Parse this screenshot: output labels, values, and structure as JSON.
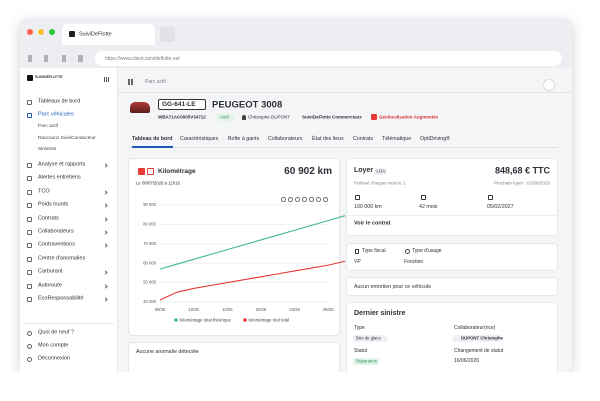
{
  "browser": {
    "tab_title": "SuiviDeFlotte",
    "url": "https://www.client.suivideflotte.net"
  },
  "sidebar": {
    "brand": "SUIVIDEFLOTTE",
    "menu": [
      "Tableaux de bord",
      "Parc véhicules",
      "Analyse et rapports",
      "Alertes entretiens",
      "TCO",
      "Poids lourds",
      "Contrats",
      "Collaborateurs",
      "Contraventions",
      "Centre d'anomalies",
      "Carburant",
      "Autoroute",
      "EcoResponsabilité"
    ],
    "submenu": [
      "Parc actif",
      "Raccourci SuiviConducteur",
      "Sinistres"
    ],
    "footer": [
      "Quoi de neuf ?",
      "Mon compte",
      "Déconnexion"
    ]
  },
  "breadcrumb": "Parc actif",
  "vehicle": {
    "plate": "GG-641-LE",
    "model": "PEUGEOT 3008",
    "vin": "WBA71AC0005V34712",
    "status": "Actif",
    "driver": "Christophe DUPONT",
    "group": "SuiviDeFlotte Commerciaux",
    "option": "Géolocalisation Augmentée"
  },
  "tabs": [
    "Tableau de bord",
    "Caractéristiques",
    "Boîte à gants",
    "Collaborateurs",
    "État des lieux",
    "Contrats",
    "Télématique",
    "OptiDriving®"
  ],
  "mileage_card": {
    "title": "Kilométrage",
    "value": "60 902 km",
    "date": "Le 08/07/2026 à 11h16"
  },
  "chart_data": {
    "type": "line",
    "categories": [
      "08/25",
      null,
      "10/25",
      null,
      "12/25",
      null,
      "02/26",
      null,
      "04/26",
      null,
      "06/26",
      null
    ],
    "series": [
      {
        "name": "Kilométrage total théorique",
        "color": "#3dbb8a",
        "values": [
          57000,
          59500,
          62000,
          64500,
          67000,
          69500,
          72000,
          74500,
          77000,
          79500,
          82000,
          84500
        ]
      },
      {
        "name": "Kilométrage réel total",
        "color": "#e53935",
        "values": [
          41000,
          45000,
          47000,
          48500,
          50000,
          51500,
          53000,
          54500,
          56000,
          57500,
          59000,
          61000
        ]
      }
    ],
    "ylim": [
      40000,
      90000
    ],
    "yticks": [
      {
        "value": 40000,
        "label": "40 000"
      },
      {
        "value": 50000,
        "label": "50 000"
      },
      {
        "value": 60000,
        "label": "60 000"
      },
      {
        "value": 70000,
        "label": "70 000"
      },
      {
        "value": 80000,
        "label": "80 000"
      },
      {
        "value": 90000,
        "label": "90 000"
      }
    ],
    "grid": true
  },
  "anomaly_card": "Aucune anomalie détectée",
  "rent_card": {
    "title": "Loyer",
    "badge": "LOA",
    "amount": "848,68 € TTC",
    "debit": "Prélevé chaque mois le 1",
    "next": "Prochain loyer : 01/08/2026",
    "km": "100 000 km",
    "duration": "42 mois",
    "end": "05/02/2027",
    "link": "Voir le contrat"
  },
  "usage_card": {
    "fiscal_label": "Type fiscal",
    "fiscal_value": "VP",
    "usage_label": "Type d'usage",
    "usage_value": "Fonction"
  },
  "maintenance_card": "Aucun entretien pour ce véhicule",
  "claim_card": {
    "title": "Dernier sinistre",
    "type_label": "Type",
    "type_value": "Bris de glace",
    "person_label": "Collaborateur(rice)",
    "person_value": "DUPONT Christophe",
    "status_label": "Statut",
    "status_value": "Réparation",
    "date_label": "Changement de statut",
    "date_value": "16/06/2026"
  }
}
